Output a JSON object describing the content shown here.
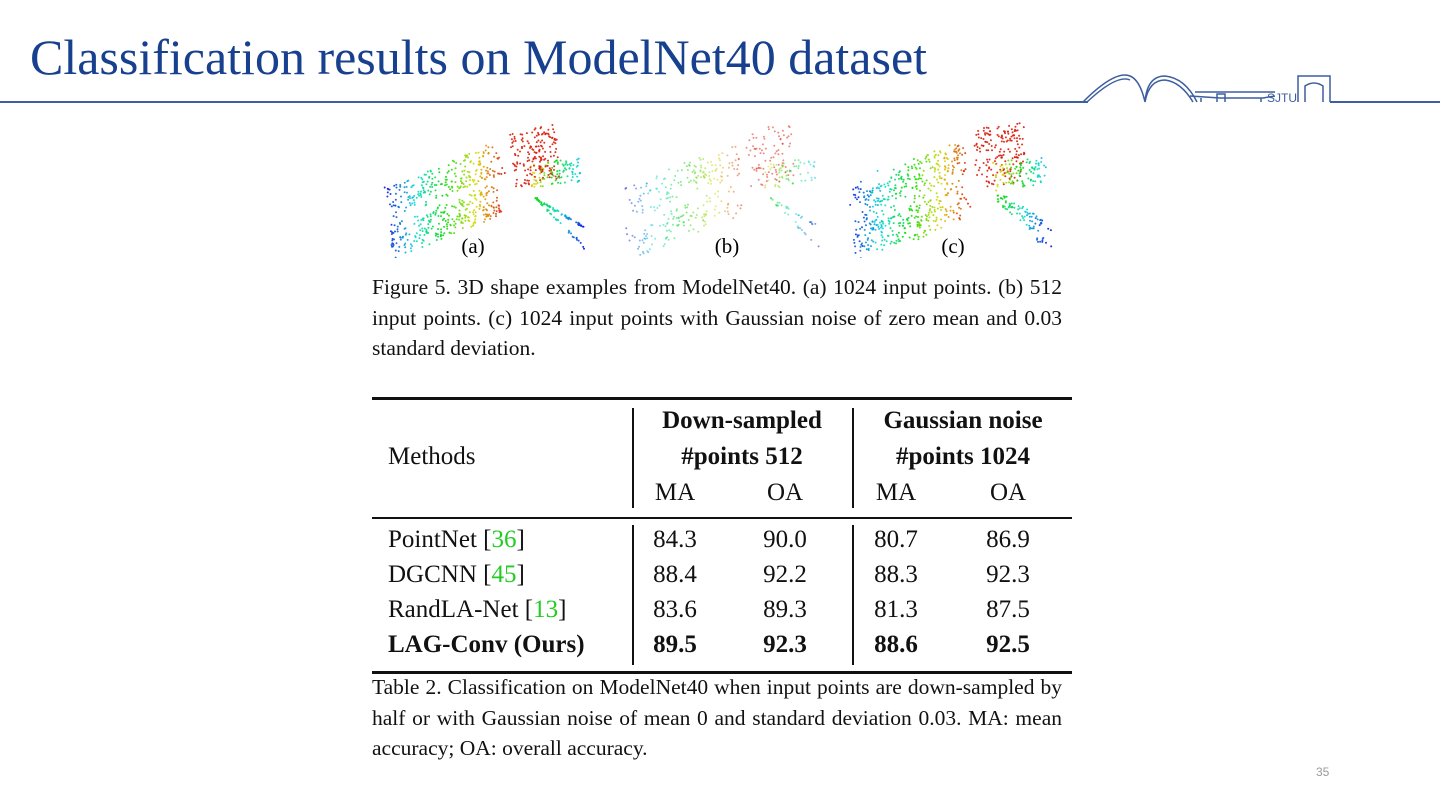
{
  "slide": {
    "title": "Classification results on ModelNet40 dataset",
    "page_number": "35",
    "logo_text": "SJTU",
    "accent_color": "#17408f"
  },
  "figure": {
    "panel_labels": [
      "(a)",
      "(b)",
      "(c)"
    ],
    "caption": "Figure 5. 3D shape examples from ModelNet40. (a) 1024 input points. (b) 512 input points. (c) 1024 input points with Gaussian noise of zero mean and 0.03 standard deviation."
  },
  "table": {
    "header": {
      "methods": "Methods",
      "group1_line1": "Down-sampled",
      "group1_line2": "#points 512",
      "group2_line1": "Gaussian noise",
      "group2_line2": "#points 1024",
      "ma": "MA",
      "oa": "OA"
    },
    "rows": [
      {
        "name": "PointNet ",
        "cite": "36",
        "ds_ma": "84.3",
        "ds_oa": "90.0",
        "gn_ma": "80.7",
        "gn_oa": "86.9",
        "bold": false
      },
      {
        "name": "DGCNN ",
        "cite": "45",
        "ds_ma": "88.4",
        "ds_oa": "92.2",
        "gn_ma": "88.3",
        "gn_oa": "92.3",
        "bold": false
      },
      {
        "name": "RandLA-Net ",
        "cite": "13",
        "ds_ma": "83.6",
        "ds_oa": "89.3",
        "gn_ma": "81.3",
        "gn_oa": "87.5",
        "bold": false
      },
      {
        "name": "LAG-Conv (Ours)",
        "cite": "",
        "ds_ma": "89.5",
        "ds_oa": "92.3",
        "gn_ma": "88.6",
        "gn_oa": "92.5",
        "bold": true
      }
    ],
    "caption": "Table 2. Classification on ModelNet40 when input points are down-sampled by half or with Gaussian noise of mean 0 and standard deviation 0.03. MA: mean accuracy; OA: overall accuracy."
  }
}
